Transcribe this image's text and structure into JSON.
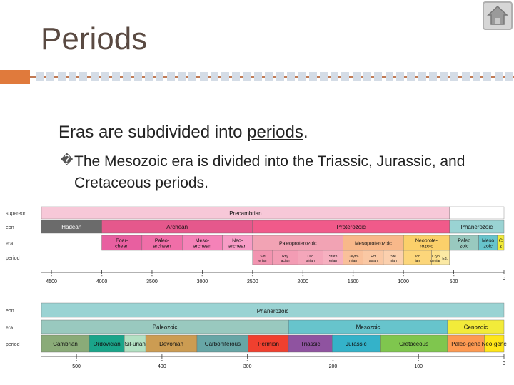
{
  "slide": {
    "title": "Periods",
    "bullet1_before": "Eras are subdivided into ",
    "bullet1_key": "periods",
    "bullet1_after": ".",
    "bullet2": "The Mesozoic era is divided into the Triassic, Jurassic, and Cretaceous periods.",
    "bullet_glyph1": "",
    "bullet_glyph2": "�",
    "home_icon": "home-icon"
  },
  "chart_data": [
    {
      "type": "table",
      "row_labels": [
        "supereon",
        "eon",
        "era",
        "period"
      ],
      "supereon": [
        {
          "label": "Precambrian",
          "start": -4600,
          "end": -541
        }
      ],
      "eons": [
        {
          "label": "Hadean",
          "start": -4600,
          "end": -4000,
          "color": "#6b6b6b"
        },
        {
          "label": "Archean",
          "start": -4000,
          "end": -2500,
          "color": "#e5588c"
        },
        {
          "label": "Proterozoic",
          "start": -2500,
          "end": -541,
          "color": "#f05a8a"
        },
        {
          "label": "Phanerozoic",
          "start": -541,
          "end": 0,
          "color": "#9ad3d3"
        }
      ],
      "eras": [
        {
          "label": "Eoar-chean",
          "start": -4000,
          "end": -3600,
          "color": "#e85fa0"
        },
        {
          "label": "Paleo-archean",
          "start": -3600,
          "end": -3200,
          "color": "#f06ea8"
        },
        {
          "label": "Meso-archean",
          "start": -3200,
          "end": -2800,
          "color": "#f582b8"
        },
        {
          "label": "Neo-archean",
          "start": -2800,
          "end": -2500,
          "color": "#f79cc6"
        },
        {
          "label": "Paleoproterozoic",
          "start": -2500,
          "end": -1600,
          "color": "#f2a3b4"
        },
        {
          "label": "Mesoproterozoic",
          "start": -1600,
          "end": -1000,
          "color": "#f8b88a"
        },
        {
          "label": "Neoprote-rozoic",
          "start": -1000,
          "end": -541,
          "color": "#fbd06a"
        },
        {
          "label": "Paleo zoic",
          "start": -541,
          "end": -252,
          "color": "#99c9bf"
        },
        {
          "label": "Meso zoic",
          "start": -252,
          "end": -66,
          "color": "#67c4cc"
        },
        {
          "label": "C z",
          "start": -66,
          "end": 0,
          "color": "#f2eb3a"
        }
      ],
      "periods": [
        {
          "label": "Sid erian",
          "start": -2500,
          "end": -2300,
          "color": "#f294b0"
        },
        {
          "label": "Rhy acian",
          "start": -2300,
          "end": -2050,
          "color": "#f39cb4"
        },
        {
          "label": "Oro sirian",
          "start": -2050,
          "end": -1800,
          "color": "#f4a6ba"
        },
        {
          "label": "Stath erian",
          "start": -1800,
          "end": -1600,
          "color": "#f6b0c0"
        },
        {
          "label": "Calym-mian",
          "start": -1600,
          "end": -1400,
          "color": "#f9c09a"
        },
        {
          "label": "Ect asian",
          "start": -1400,
          "end": -1200,
          "color": "#fac8a4"
        },
        {
          "label": "Ste nian",
          "start": -1200,
          "end": -1000,
          "color": "#fbd0ae"
        },
        {
          "label": "Ton ian",
          "start": -1000,
          "end": -720,
          "color": "#fcd67a"
        },
        {
          "label": "Cryo genian",
          "start": -720,
          "end": -635,
          "color": "#fde08a"
        },
        {
          "label": "Ed.",
          "start": -635,
          "end": -541,
          "color": "#fbe9a4"
        }
      ],
      "axis_ticks": [
        -4500,
        -4000,
        -3500,
        -3000,
        -2500,
        -2000,
        -1500,
        -1000,
        -500,
        0
      ],
      "xlim": [
        -4600,
        0
      ]
    },
    {
      "type": "table",
      "row_labels": [
        "eon",
        "era",
        "period"
      ],
      "eon": [
        {
          "label": "Phanerozoic",
          "start": -541,
          "end": 0
        }
      ],
      "eras": [
        {
          "label": "Paleozoic",
          "start": -541,
          "end": -252,
          "color": "#99c9bf"
        },
        {
          "label": "Mesozoic",
          "start": -252,
          "end": -66,
          "color": "#67c4cc"
        },
        {
          "label": "Cenozoic",
          "start": -66,
          "end": 0,
          "color": "#f2eb3a"
        }
      ],
      "periods": [
        {
          "label": "Cambrian",
          "start": -541,
          "end": -485,
          "color": "#8aab78"
        },
        {
          "label": "Ordovician",
          "start": -485,
          "end": -444,
          "color": "#1aa58a"
        },
        {
          "label": "Sil-urian",
          "start": -444,
          "end": -419,
          "color": "#b3e1c3"
        },
        {
          "label": "Devonian",
          "start": -419,
          "end": -359,
          "color": "#cc9c52"
        },
        {
          "label": "Carboniferous",
          "start": -359,
          "end": -299,
          "color": "#67a6a6"
        },
        {
          "label": "Permian",
          "start": -299,
          "end": -252,
          "color": "#f0402f"
        },
        {
          "label": "Triassic",
          "start": -252,
          "end": -201,
          "color": "#8f53a0"
        },
        {
          "label": "Jurassic",
          "start": -201,
          "end": -145,
          "color": "#34b2c9"
        },
        {
          "label": "Cretaceous",
          "start": -145,
          "end": -66,
          "color": "#7fc64e"
        },
        {
          "label": "Paleo-gene",
          "start": -66,
          "end": -23,
          "color": "#fd9a52"
        },
        {
          "label": "Neo-gene",
          "start": -23,
          "end": 0,
          "color": "#ffe619"
        }
      ],
      "axis_ticks": [
        -500,
        -400,
        -300,
        -200,
        -100,
        0
      ],
      "xlim": [
        -541,
        0
      ]
    }
  ]
}
